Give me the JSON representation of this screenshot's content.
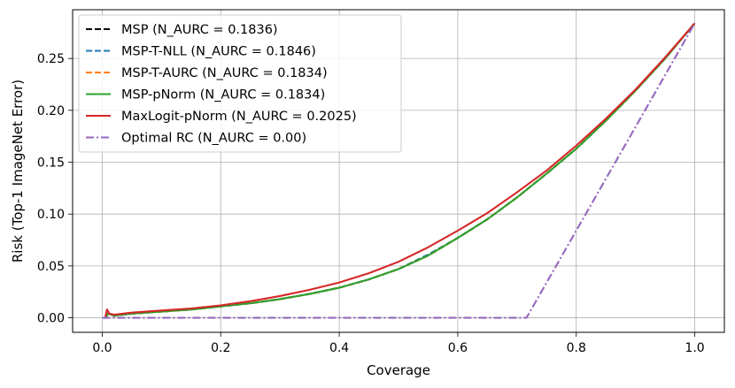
{
  "chart_data": {
    "type": "line",
    "title": "",
    "xlabel": "Coverage",
    "ylabel": "Risk (Top-1 ImageNet Error)",
    "xlim": [
      -0.05,
      1.05
    ],
    "ylim": [
      -0.014,
      0.297
    ],
    "xticks": [
      0.0,
      0.2,
      0.4,
      0.6,
      0.8,
      1.0
    ],
    "xtick_labels": [
      "0.0",
      "0.2",
      "0.4",
      "0.6",
      "0.8",
      "1.0"
    ],
    "yticks": [
      0.0,
      0.05,
      0.1,
      0.15,
      0.2,
      0.25
    ],
    "ytick_labels": [
      "0.00",
      "0.05",
      "0.10",
      "0.15",
      "0.20",
      "0.25"
    ],
    "grid": true,
    "legend_position": "top-left",
    "series": [
      {
        "name": "MSP (N_AURC = 0.1836)",
        "color": "#000000",
        "style": "dashed",
        "x": [
          0.005,
          0.01,
          0.02,
          0.05,
          0.1,
          0.15,
          0.2,
          0.25,
          0.3,
          0.35,
          0.4,
          0.45,
          0.5,
          0.55,
          0.6,
          0.65,
          0.7,
          0.75,
          0.8,
          0.85,
          0.9,
          0.95,
          1.0
        ],
        "y": [
          0.0,
          0.004,
          0.002,
          0.004,
          0.006,
          0.008,
          0.011,
          0.014,
          0.018,
          0.023,
          0.029,
          0.037,
          0.047,
          0.06,
          0.077,
          0.095,
          0.116,
          0.139,
          0.163,
          0.19,
          0.219,
          0.25,
          0.284
        ]
      },
      {
        "name": "MSP-T-NLL (N_AURC = 0.1846)",
        "color": "#1f77b4",
        "style": "dashed",
        "x": [
          0.005,
          0.01,
          0.02,
          0.05,
          0.1,
          0.15,
          0.2,
          0.25,
          0.3,
          0.35,
          0.4,
          0.45,
          0.5,
          0.55,
          0.6,
          0.65,
          0.7,
          0.75,
          0.8,
          0.85,
          0.9,
          0.95,
          1.0
        ],
        "y": [
          0.0,
          0.004,
          0.002,
          0.004,
          0.006,
          0.008,
          0.011,
          0.014,
          0.018,
          0.023,
          0.029,
          0.037,
          0.047,
          0.061,
          0.077,
          0.095,
          0.116,
          0.139,
          0.163,
          0.19,
          0.219,
          0.25,
          0.284
        ]
      },
      {
        "name": "MSP-T-AURC (N_AURC = 0.1834)",
        "color": "#ff7f0e",
        "style": "dashed",
        "x": [
          0.005,
          0.01,
          0.02,
          0.05,
          0.1,
          0.15,
          0.2,
          0.25,
          0.3,
          0.35,
          0.4,
          0.45,
          0.5,
          0.55,
          0.6,
          0.65,
          0.7,
          0.75,
          0.8,
          0.85,
          0.9,
          0.95,
          1.0
        ],
        "y": [
          0.0,
          0.004,
          0.002,
          0.004,
          0.006,
          0.008,
          0.011,
          0.014,
          0.018,
          0.023,
          0.029,
          0.037,
          0.047,
          0.06,
          0.077,
          0.095,
          0.116,
          0.139,
          0.163,
          0.19,
          0.219,
          0.25,
          0.284
        ]
      },
      {
        "name": "MSP-pNorm (N_AURC = 0.1834)",
        "color": "#2ca02c",
        "style": "solid",
        "x": [
          0.005,
          0.01,
          0.02,
          0.05,
          0.1,
          0.15,
          0.2,
          0.25,
          0.3,
          0.35,
          0.4,
          0.45,
          0.5,
          0.55,
          0.6,
          0.65,
          0.7,
          0.75,
          0.8,
          0.85,
          0.9,
          0.95,
          1.0
        ],
        "y": [
          0.0,
          0.004,
          0.002,
          0.004,
          0.006,
          0.008,
          0.011,
          0.014,
          0.018,
          0.023,
          0.029,
          0.037,
          0.047,
          0.06,
          0.077,
          0.095,
          0.116,
          0.139,
          0.163,
          0.19,
          0.219,
          0.25,
          0.284
        ]
      },
      {
        "name": "MaxLogit-pNorm (N_AURC = 0.2025)",
        "color": "#d62728",
        "style": "solid",
        "x": [
          0.005,
          0.008,
          0.012,
          0.02,
          0.05,
          0.1,
          0.15,
          0.2,
          0.25,
          0.3,
          0.35,
          0.4,
          0.45,
          0.5,
          0.55,
          0.6,
          0.65,
          0.7,
          0.75,
          0.8,
          0.85,
          0.9,
          0.95,
          1.0
        ],
        "y": [
          0.0,
          0.008,
          0.004,
          0.003,
          0.005,
          0.007,
          0.009,
          0.012,
          0.016,
          0.021,
          0.027,
          0.034,
          0.043,
          0.054,
          0.068,
          0.084,
          0.101,
          0.121,
          0.142,
          0.166,
          0.192,
          0.22,
          0.251,
          0.284
        ]
      },
      {
        "name": "Optimal RC (N_AURC = 0.00)",
        "color": "#9467bd",
        "style": "dashdot",
        "x": [
          0.0,
          0.716,
          1.0
        ],
        "y": [
          0.0,
          0.0,
          0.284
        ]
      }
    ]
  }
}
